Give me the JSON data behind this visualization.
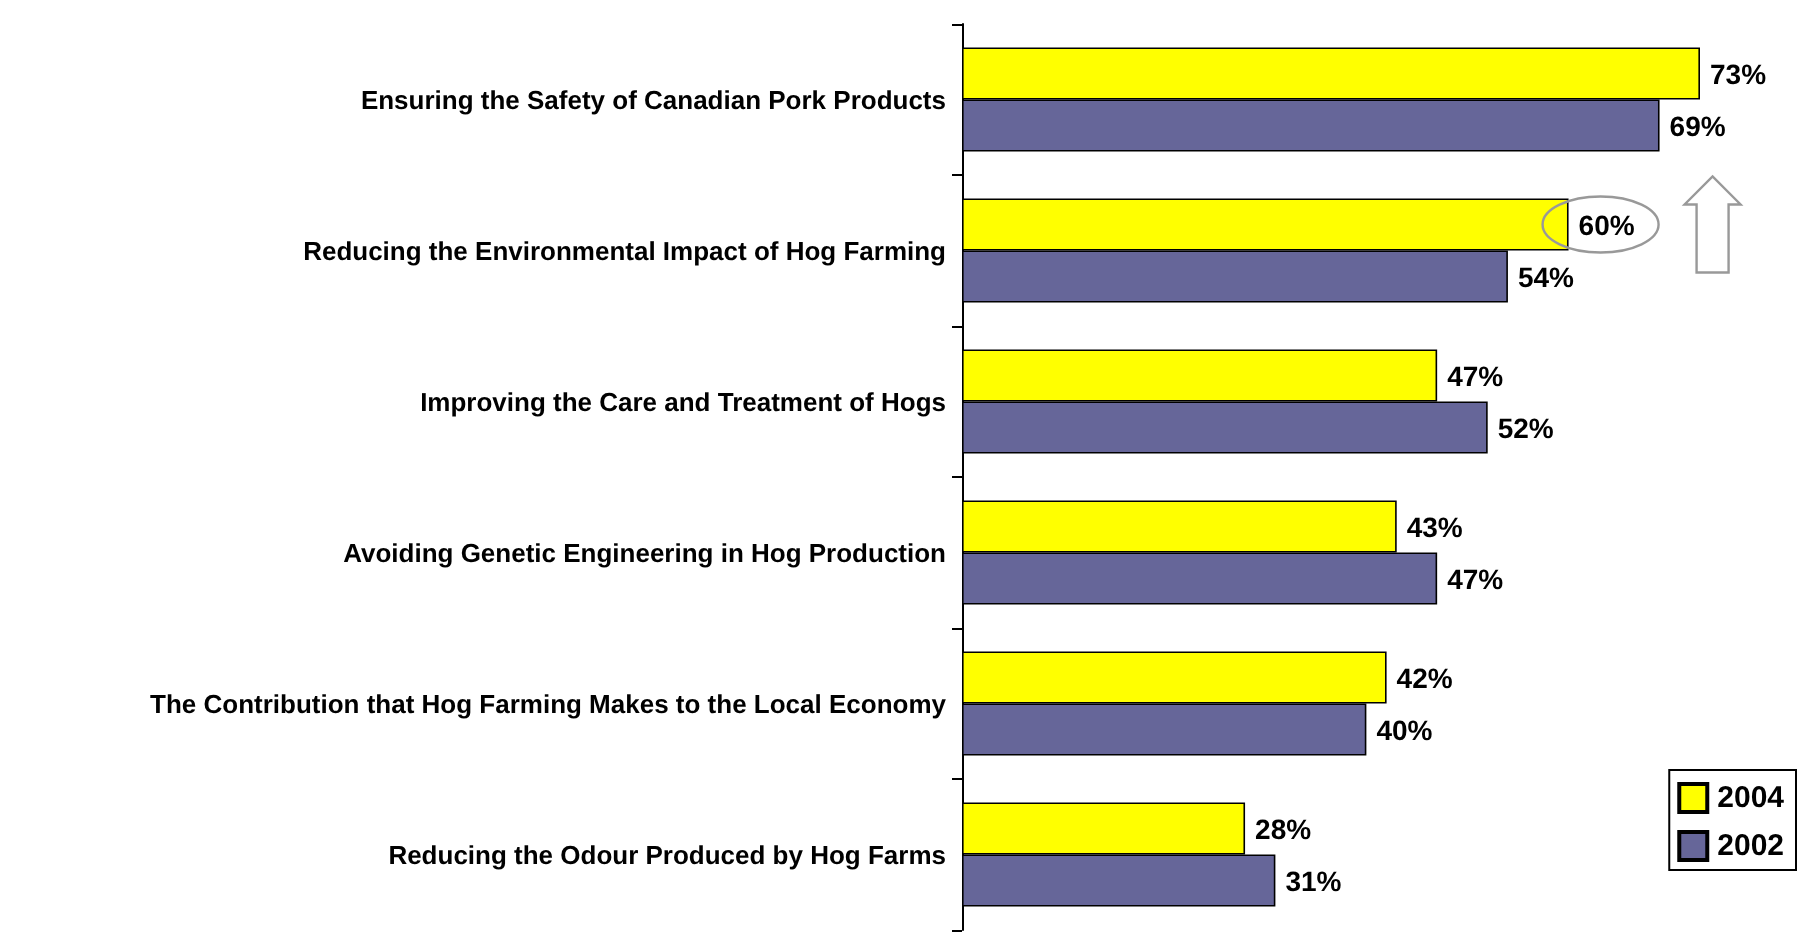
{
  "chart_data": {
    "type": "bar",
    "orientation": "horizontal",
    "data_labels": true,
    "legend": "bottom right",
    "grid": false,
    "categories": [
      "Ensuring the Safety of Canadian Pork Products",
      "Reducing the Environmental Impact of Hog Farming",
      "Improving the Care and Treatment of Hogs",
      "Avoiding Genetic Engineering in Hog Production",
      "The Contribution that Hog Farming Makes to the Local Economy",
      "Reducing the Odour Produced by Hog Farms"
    ],
    "series": [
      {
        "name": "2004",
        "color": "#ffff00",
        "values": [
          73,
          60,
          47,
          43,
          42,
          28
        ],
        "value_labels": [
          "73%",
          "60%",
          "47%",
          "43%",
          "42%",
          "28%"
        ]
      },
      {
        "name": "2002",
        "color": "#666699",
        "values": [
          69,
          54,
          52,
          47,
          40,
          31
        ],
        "value_labels": [
          "69%",
          "54%",
          "52%",
          "47%",
          "40%",
          "31%"
        ]
      }
    ]
  }
}
